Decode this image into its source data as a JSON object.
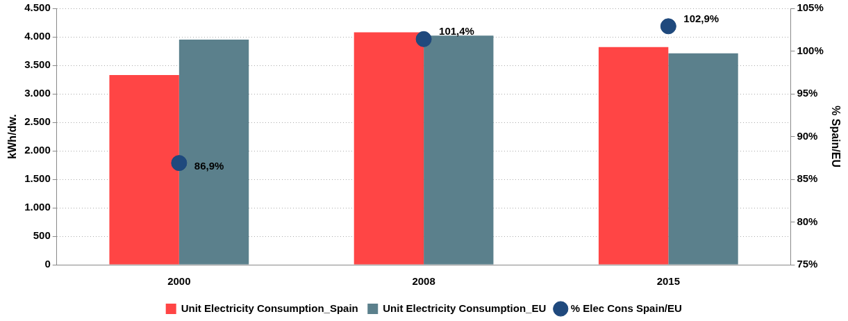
{
  "chart_data": {
    "type": "bar",
    "ylabel": "kWh/dw.",
    "y2label": "% Spain/EU",
    "categories": [
      "2000",
      "2008",
      "2015"
    ],
    "series": [
      {
        "name": "Unit Electricity Consumption_Spain",
        "color": "#ff4545",
        "values": [
          3330,
          4080,
          3820
        ]
      },
      {
        "name": "Unit Electricity Consumption_EU",
        "color": "#5b808c",
        "values": [
          3950,
          4020,
          3710
        ]
      },
      {
        "name": "% Elec Cons Spain/EU",
        "type": "scatter",
        "axis": "y2",
        "color": "#1f497d",
        "values": [
          86.9,
          101.4,
          102.9
        ],
        "value_labels": [
          "86,9%",
          "101,4%",
          "102,9%"
        ]
      }
    ],
    "ylim": [
      0,
      4500
    ],
    "yticks": [
      {
        "value": 0,
        "label": "0"
      },
      {
        "value": 500,
        "label": "500"
      },
      {
        "value": 1000,
        "label": "1.000"
      },
      {
        "value": 1500,
        "label": "1.500"
      },
      {
        "value": 2000,
        "label": "2.000"
      },
      {
        "value": 2500,
        "label": "2.500"
      },
      {
        "value": 3000,
        "label": "3.000"
      },
      {
        "value": 3500,
        "label": "3.500"
      },
      {
        "value": 4000,
        "label": "4.000"
      },
      {
        "value": 4500,
        "label": "4.500"
      }
    ],
    "y2lim": [
      75,
      105
    ],
    "y2ticks": [
      {
        "value": 75,
        "label": "75%"
      },
      {
        "value": 80,
        "label": "80%"
      },
      {
        "value": 85,
        "label": "85%"
      },
      {
        "value": 90,
        "label": "90%"
      },
      {
        "value": 95,
        "label": "95%"
      },
      {
        "value": 100,
        "label": "100%"
      },
      {
        "value": 105,
        "label": "105%"
      }
    ],
    "grid": "y",
    "legend": "bottom",
    "marker": "circle"
  }
}
